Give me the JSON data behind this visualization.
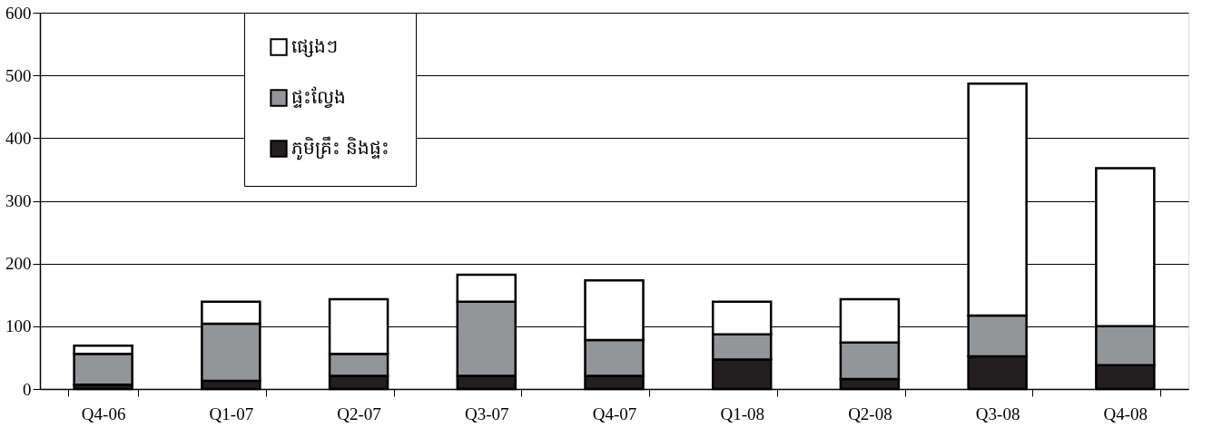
{
  "chart_data": {
    "type": "bar",
    "stacked": true,
    "categories": [
      "Q4-06",
      "Q1-07",
      "Q2-07",
      "Q3-07",
      "Q4-07",
      "Q1-08",
      "Q2-08",
      "Q3-08",
      "Q4-08"
    ],
    "series": [
      {
        "name": "ភូមិគ្រឹះ និងផ្ទះ",
        "color": "#231f20",
        "values": [
          7,
          13,
          21,
          21,
          21,
          47,
          16,
          52,
          38
        ]
      },
      {
        "name": "ផ្ទះល្វែង",
        "color": "#939598",
        "values": [
          49,
          91,
          35,
          118,
          57,
          40,
          58,
          65,
          62
        ]
      },
      {
        "name": "ផ្សេងៗ",
        "color": "#ffffff",
        "values": [
          13,
          35,
          87,
          43,
          95,
          52,
          69,
          370,
          252
        ]
      }
    ],
    "ylim": [
      0,
      600
    ],
    "yticks": [
      0,
      100,
      200,
      300,
      400,
      500,
      600
    ],
    "grid": "y",
    "legend": "top left"
  }
}
